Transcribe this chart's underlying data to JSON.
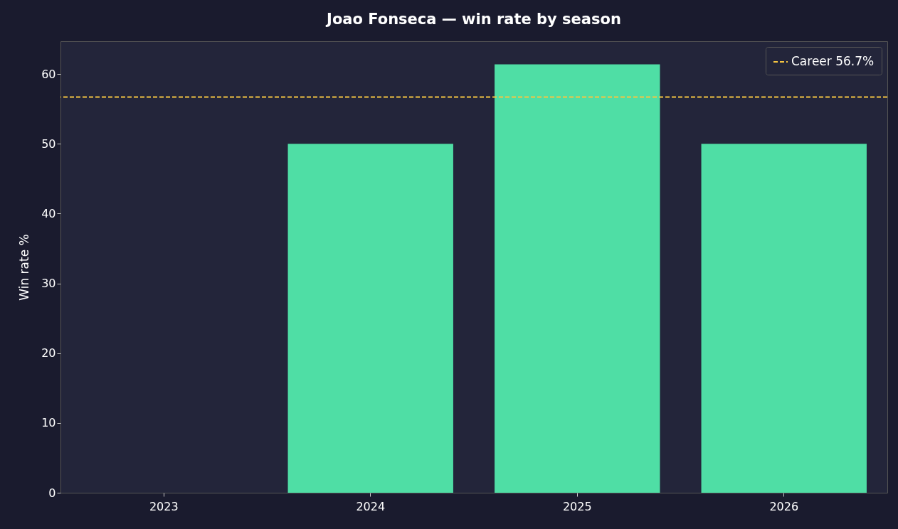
{
  "chart_data": {
    "type": "bar",
    "title": "Joao Fonseca — win rate by season",
    "ylabel": "Win rate %",
    "categories": [
      "2023",
      "2024",
      "2025",
      "2026"
    ],
    "values": [
      0,
      50,
      61.4,
      50
    ],
    "color": "#4fdea5",
    "ylim": [
      0,
      64.7
    ],
    "yticks": [
      0,
      10,
      20,
      30,
      40,
      50,
      60
    ],
    "grid": false,
    "legend": "top right",
    "ref_lines": [
      {
        "axis": "y",
        "value": 56.7,
        "label": "Career 56.7%",
        "color": "#f5c542",
        "line_style": "dashed"
      }
    ]
  }
}
